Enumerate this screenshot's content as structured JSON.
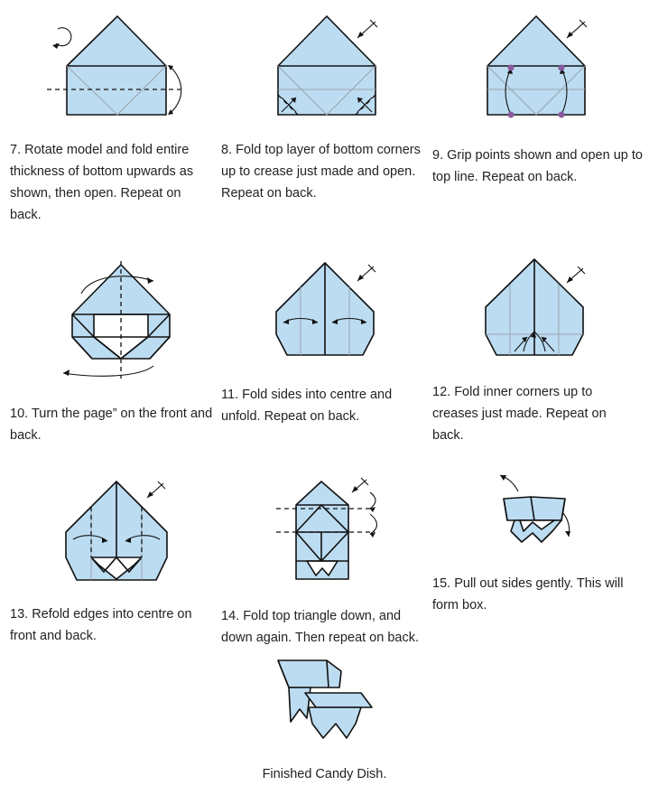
{
  "steps": [
    {
      "number": "7.",
      "text": "Rotate model and fold entire thickness of bottom upwards as shown, then open. Repeat on back."
    },
    {
      "number": "8.",
      "text": "Fold top layer of bottom corners up to crease just made and open. Repeat on back."
    },
    {
      "number": "9.",
      "text": "Grip points shown and open up to top line. Repeat on back."
    },
    {
      "number": "10.",
      "text": "Turn the page” on the front and back."
    },
    {
      "number": "11.",
      "text": "Fold sides into centre and unfold. Repeat on back."
    },
    {
      "number": "12.",
      "text": "Fold inner corners up to creases just made. Repeat on back."
    },
    {
      "number": "13.",
      "text": "Refold edges into centre on front and back."
    },
    {
      "number": "14.",
      "text": "Fold top triangle down, and down again. Then repeat on back."
    },
    {
      "number": "15.",
      "text": "Pull out sides gently. This will form box."
    }
  ],
  "final": {
    "text": "Finished Candy Dish."
  },
  "colors": {
    "paper": "#bcdcf2",
    "line": "#111111",
    "crease": "#9aa4ad",
    "grip_point": "#8a5a9e"
  }
}
